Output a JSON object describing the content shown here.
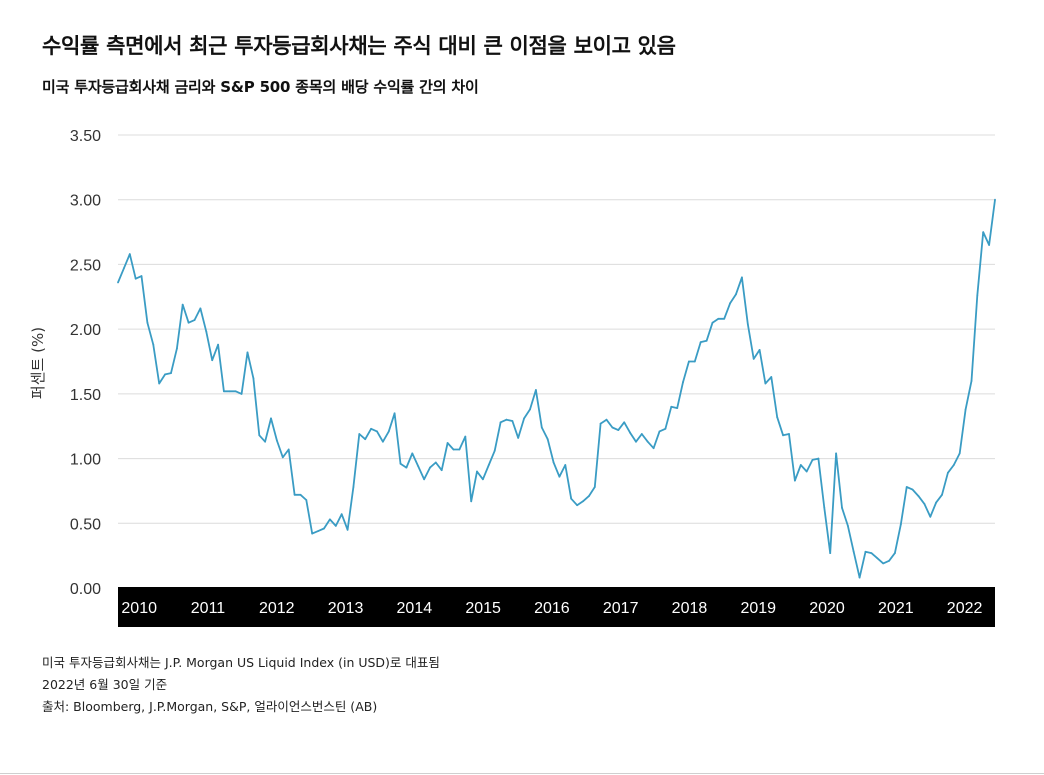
{
  "title": "수익률 측면에서 최근 투자등급회사채는 주식 대비 큰 이점을 보이고 있음",
  "subtitle": "미국 투자등급회사채 금리와 S&P 500 종목의 배당 수익률 간의 차이",
  "notes": [
    "미국 투자등급회사채는 J.P. Morgan US Liquid Index (in USD)로 대표됨",
    "2022년 6월 30일 기준",
    "출처: Bloomberg, J.P.Morgan, S&P, 얼라이언스번스틴 (AB)"
  ],
  "colors": {
    "line": "#3a9cc4",
    "grid": "#dcdcdc",
    "band": "#000000",
    "band_text": "#ffffff"
  },
  "chart_data": {
    "type": "line",
    "ylabel": "퍼센트 (%)",
    "ylim": [
      0,
      3.5
    ],
    "y_ticks": [
      "0.00",
      "0.50",
      "1.00",
      "1.50",
      "2.00",
      "2.50",
      "3.00",
      "3.50"
    ],
    "y_tick_values": [
      0,
      0.5,
      1.0,
      1.5,
      2.0,
      2.5,
      3.0,
      3.5
    ],
    "grid": "horizontal",
    "x_start": 2009.75,
    "x_end": 2022.5,
    "x_tick_labels": [
      "2010",
      "2011",
      "2012",
      "2013",
      "2014",
      "2015",
      "2016",
      "2017",
      "2018",
      "2019",
      "2020",
      "2021",
      "2022"
    ],
    "x_tick_values": [
      2010,
      2011,
      2012,
      2013,
      2014,
      2015,
      2016,
      2017,
      2018,
      2019,
      2020,
      2021,
      2022
    ],
    "series": [
      {
        "values": [
          2.36,
          2.47,
          2.58,
          2.39,
          2.41,
          2.05,
          1.88,
          1.58,
          1.65,
          1.66,
          1.85,
          2.19,
          2.05,
          2.07,
          2.16,
          1.98,
          1.76,
          1.88,
          1.52,
          1.52,
          1.52,
          1.5,
          1.82,
          1.62,
          1.18,
          1.13,
          1.31,
          1.14,
          1.01,
          1.07,
          0.72,
          0.72,
          0.68,
          0.42,
          0.44,
          0.46,
          0.53,
          0.48,
          0.57,
          0.45,
          0.78,
          1.19,
          1.15,
          1.23,
          1.21,
          1.13,
          1.21,
          1.35,
          0.96,
          0.93,
          1.04,
          0.94,
          0.84,
          0.93,
          0.97,
          0.91,
          1.12,
          1.07,
          1.07,
          1.17,
          0.67,
          0.9,
          0.84,
          0.95,
          1.06,
          1.28,
          1.3,
          1.29,
          1.16,
          1.31,
          1.38,
          1.53,
          1.24,
          1.15,
          0.97,
          0.86,
          0.95,
          0.69,
          0.64,
          0.67,
          0.71,
          0.78,
          1.27,
          1.3,
          1.24,
          1.22,
          1.28,
          1.2,
          1.13,
          1.19,
          1.13,
          1.08,
          1.21,
          1.23,
          1.4,
          1.39,
          1.59,
          1.75,
          1.75,
          1.9,
          1.91,
          2.05,
          2.08,
          2.08,
          2.2,
          2.27,
          2.4,
          2.04,
          1.77,
          1.84,
          1.58,
          1.63,
          1.32,
          1.18,
          1.19,
          0.83,
          0.95,
          0.9,
          0.99,
          1.0,
          0.62,
          0.27,
          1.04,
          0.62,
          0.48,
          0.28,
          0.08,
          0.28,
          0.27,
          0.23,
          0.19,
          0.21,
          0.27,
          0.49,
          0.78,
          0.76,
          0.71,
          0.65,
          0.55,
          0.66,
          0.72,
          0.89,
          0.95,
          1.04,
          1.38,
          1.6,
          2.26,
          2.75,
          2.65,
          3.0
        ]
      }
    ]
  }
}
